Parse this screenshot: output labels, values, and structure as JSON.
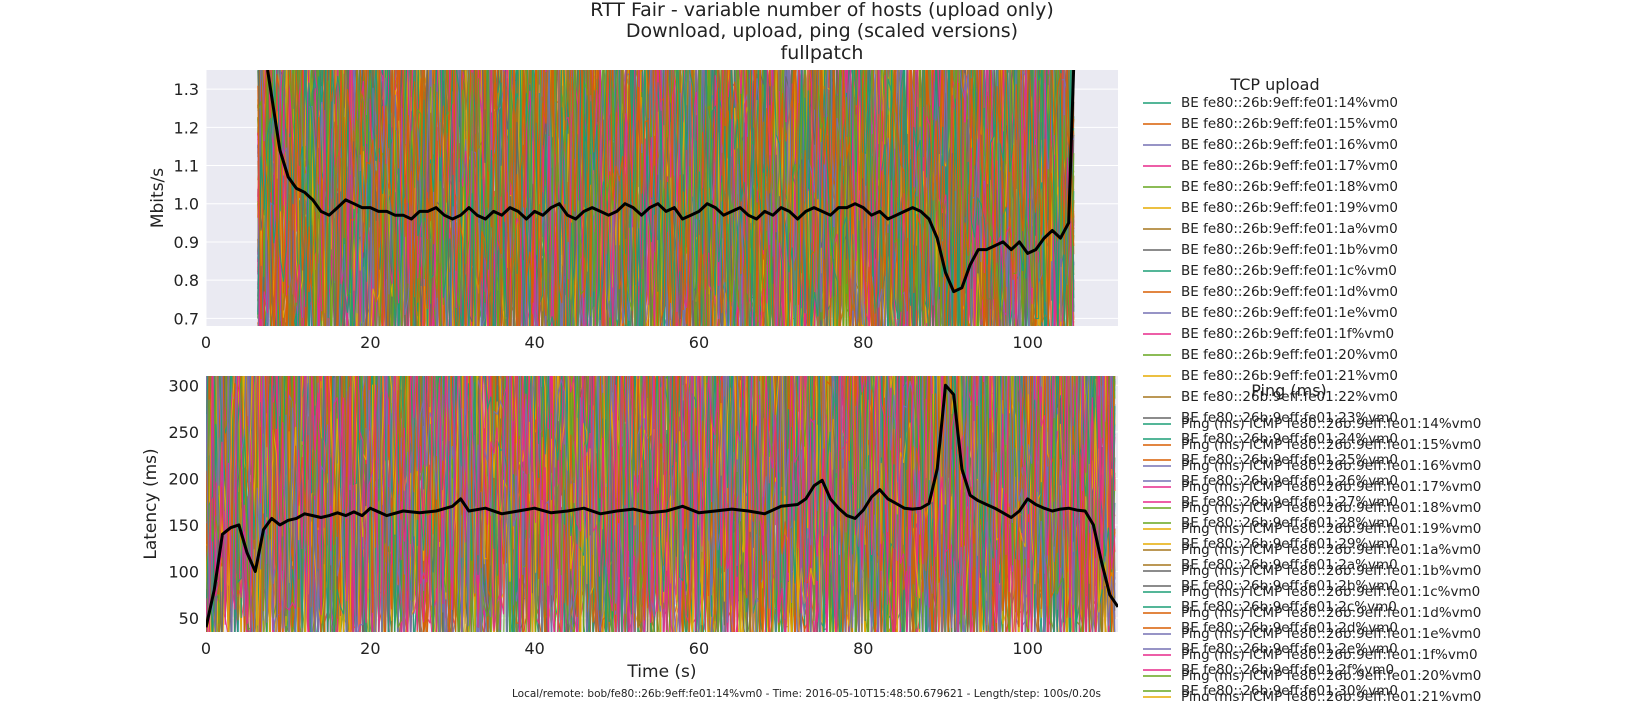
{
  "figure": {
    "title_lines": [
      "RTT Fair - variable number of hosts (upload only)",
      "Download, upload, ping (scaled versions)",
      "fullpatch"
    ],
    "footer": "Local/remote: bob/fe80::26b:9eff:fe01:14%vm0 - Time: 2016-05-10T15:48:50.679621 - Length/step: 100s/0.20s"
  },
  "chart_data": [
    {
      "type": "line",
      "title": "",
      "xlabel": "",
      "ylabel": "Mbits/s",
      "xlim": [
        0,
        111
      ],
      "ylim": [
        0.68,
        1.35
      ],
      "xticks": [
        0,
        20,
        40,
        60,
        80,
        100
      ],
      "yticks": [
        0.7,
        0.8,
        0.9,
        1.0,
        1.1,
        1.2,
        1.3
      ],
      "grid": true,
      "background": "#eaeaf2",
      "legend": {
        "title": "TCP upload",
        "placement": "right",
        "entries": [
          {
            "name": "BE fe80::26b:9eff:fe01:14%vm0",
            "color": "#1b9e77"
          },
          {
            "name": "BE fe80::26b:9eff:fe01:15%vm0",
            "color": "#d95f02"
          },
          {
            "name": "BE fe80::26b:9eff:fe01:16%vm0",
            "color": "#7570b3"
          },
          {
            "name": "BE fe80::26b:9eff:fe01:17%vm0",
            "color": "#e7298a"
          },
          {
            "name": "BE fe80::26b:9eff:fe01:18%vm0",
            "color": "#66a61e"
          },
          {
            "name": "BE fe80::26b:9eff:fe01:19%vm0",
            "color": "#e6ab02"
          },
          {
            "name": "BE fe80::26b:9eff:fe01:1a%vm0",
            "color": "#a6761d"
          },
          {
            "name": "BE fe80::26b:9eff:fe01:1b%vm0",
            "color": "#666666"
          },
          {
            "name": "BE fe80::26b:9eff:fe01:1c%vm0",
            "color": "#1b9e77"
          },
          {
            "name": "BE fe80::26b:9eff:fe01:1d%vm0",
            "color": "#d95f02"
          },
          {
            "name": "BE fe80::26b:9eff:fe01:1e%vm0",
            "color": "#7570b3"
          },
          {
            "name": "BE fe80::26b:9eff:fe01:1f%vm0",
            "color": "#e7298a"
          },
          {
            "name": "BE fe80::26b:9eff:fe01:20%vm0",
            "color": "#66a61e"
          },
          {
            "name": "BE fe80::26b:9eff:fe01:21%vm0",
            "color": "#e6ab02"
          },
          {
            "name": "BE fe80::26b:9eff:fe01:22%vm0",
            "color": "#a6761d"
          },
          {
            "name": "BE fe80::26b:9eff:fe01:23%vm0",
            "color": "#666666"
          },
          {
            "name": "BE fe80::26b:9eff:fe01:24%vm0",
            "color": "#1b9e77"
          },
          {
            "name": "BE fe80::26b:9eff:fe01:25%vm0",
            "color": "#d95f02"
          },
          {
            "name": "BE fe80::26b:9eff:fe01:26%vm0",
            "color": "#7570b3"
          },
          {
            "name": "BE fe80::26b:9eff:fe01:27%vm0",
            "color": "#e7298a"
          },
          {
            "name": "BE fe80::26b:9eff:fe01:28%vm0",
            "color": "#66a61e"
          },
          {
            "name": "BE fe80::26b:9eff:fe01:29%vm0",
            "color": "#e6ab02"
          },
          {
            "name": "BE fe80::26b:9eff:fe01:2a%vm0",
            "color": "#a6761d"
          },
          {
            "name": "BE fe80::26b:9eff:fe01:2b%vm0",
            "color": "#666666"
          },
          {
            "name": "BE fe80::26b:9eff:fe01:2c%vm0",
            "color": "#1b9e77"
          },
          {
            "name": "BE fe80::26b:9eff:fe01:2d%vm0",
            "color": "#d95f02"
          },
          {
            "name": "BE fe80::26b:9eff:fe01:2e%vm0",
            "color": "#7570b3"
          },
          {
            "name": "BE fe80::26b:9eff:fe01:2f%vm0",
            "color": "#e7298a"
          },
          {
            "name": "BE fe80::26b:9eff:fe01:30%vm0",
            "color": "#66a61e"
          }
        ]
      },
      "noise": {
        "x_start": 6.3,
        "x_end": 106,
        "count": 60,
        "seed": 7,
        "min": 0.55,
        "max": 1.5
      },
      "series": [
        {
          "name": "",
          "color": "#000000",
          "x": [
            7.5,
            8,
            9,
            10,
            11,
            12,
            13,
            14,
            15,
            16,
            17,
            18,
            19,
            20,
            21,
            22,
            23,
            24,
            25,
            26,
            27,
            28,
            29,
            30,
            31,
            32,
            33,
            34,
            35,
            36,
            37,
            38,
            39,
            40,
            41,
            42,
            43,
            44,
            45,
            46,
            47,
            48,
            49,
            50,
            51,
            52,
            53,
            54,
            55,
            56,
            57,
            58,
            59,
            60,
            61,
            62,
            63,
            64,
            65,
            66,
            67,
            68,
            69,
            70,
            71,
            72,
            73,
            74,
            75,
            76,
            77,
            78,
            79,
            80,
            81,
            82,
            83,
            84,
            85,
            86,
            87,
            88,
            89,
            90,
            91,
            92,
            93,
            94,
            95,
            96,
            97,
            98,
            99,
            100,
            101,
            102,
            103,
            104,
            105,
            105.6
          ],
          "y": [
            1.35,
            1.28,
            1.14,
            1.07,
            1.04,
            1.03,
            1.01,
            0.98,
            0.97,
            0.99,
            1.01,
            1.0,
            0.99,
            0.99,
            0.98,
            0.98,
            0.97,
            0.97,
            0.96,
            0.98,
            0.98,
            0.99,
            0.97,
            0.96,
            0.97,
            0.99,
            0.97,
            0.96,
            0.98,
            0.97,
            0.99,
            0.98,
            0.96,
            0.98,
            0.97,
            0.99,
            1.0,
            0.97,
            0.96,
            0.98,
            0.99,
            0.98,
            0.97,
            0.98,
            1.0,
            0.99,
            0.97,
            0.99,
            1.0,
            0.98,
            0.99,
            0.96,
            0.97,
            0.98,
            1.0,
            0.99,
            0.97,
            0.98,
            0.99,
            0.97,
            0.96,
            0.98,
            0.97,
            0.99,
            0.98,
            0.96,
            0.98,
            0.99,
            0.98,
            0.97,
            0.99,
            0.99,
            1.0,
            0.99,
            0.97,
            0.98,
            0.96,
            0.97,
            0.98,
            0.99,
            0.98,
            0.96,
            0.91,
            0.82,
            0.77,
            0.78,
            0.84,
            0.88,
            0.88,
            0.89,
            0.9,
            0.88,
            0.9,
            0.87,
            0.88,
            0.91,
            0.93,
            0.91,
            0.95,
            1.35
          ]
        }
      ]
    },
    {
      "type": "line",
      "title": "",
      "xlabel": "Time (s)",
      "ylabel": "Latency (ms)",
      "xlim": [
        0,
        111
      ],
      "ylim": [
        35,
        310
      ],
      "xticks": [
        0,
        20,
        40,
        60,
        80,
        100
      ],
      "yticks": [
        50,
        100,
        150,
        200,
        250,
        300
      ],
      "grid": true,
      "background": "#eaeaf2",
      "legend": {
        "title": "Ping (ms)",
        "placement": "right",
        "entries": [
          {
            "name": "Ping (ms) ICMP fe80::26b:9eff:fe01:14%vm0",
            "color": "#1b9e77"
          },
          {
            "name": "Ping (ms) ICMP fe80::26b:9eff:fe01:15%vm0",
            "color": "#d95f02"
          },
          {
            "name": "Ping (ms) ICMP fe80::26b:9eff:fe01:16%vm0",
            "color": "#7570b3"
          },
          {
            "name": "Ping (ms) ICMP fe80::26b:9eff:fe01:17%vm0",
            "color": "#e7298a"
          },
          {
            "name": "Ping (ms) ICMP fe80::26b:9eff:fe01:18%vm0",
            "color": "#66a61e"
          },
          {
            "name": "Ping (ms) ICMP fe80::26b:9eff:fe01:19%vm0",
            "color": "#e6ab02"
          },
          {
            "name": "Ping (ms) ICMP fe80::26b:9eff:fe01:1a%vm0",
            "color": "#a6761d"
          },
          {
            "name": "Ping (ms) ICMP fe80::26b:9eff:fe01:1b%vm0",
            "color": "#666666"
          },
          {
            "name": "Ping (ms) ICMP fe80::26b:9eff:fe01:1c%vm0",
            "color": "#1b9e77"
          },
          {
            "name": "Ping (ms) ICMP fe80::26b:9eff:fe01:1d%vm0",
            "color": "#d95f02"
          },
          {
            "name": "Ping (ms) ICMP fe80::26b:9eff:fe01:1e%vm0",
            "color": "#7570b3"
          },
          {
            "name": "Ping (ms) ICMP fe80::26b:9eff:fe01:1f%vm0",
            "color": "#e7298a"
          },
          {
            "name": "Ping (ms) ICMP fe80::26b:9eff:fe01:20%vm0",
            "color": "#66a61e"
          },
          {
            "name": "Ping (ms) ICMP fe80::26b:9eff:fe01:21%vm0",
            "color": "#e6ab02"
          }
        ]
      },
      "noise": {
        "x_start": 0,
        "x_end": 111,
        "count": 60,
        "seed": 13,
        "min": 0,
        "max": 420
      },
      "series": [
        {
          "name": "",
          "color": "#000000",
          "x": [
            0,
            1,
            2,
            3,
            4,
            5,
            6,
            7,
            8,
            9,
            10,
            11,
            12,
            13,
            14,
            15,
            16,
            17,
            18,
            19,
            20,
            22,
            24,
            26,
            28,
            30,
            31,
            32,
            34,
            36,
            38,
            40,
            42,
            44,
            46,
            48,
            50,
            52,
            54,
            56,
            58,
            60,
            62,
            64,
            66,
            68,
            70,
            72,
            73,
            74,
            75,
            76,
            77,
            78,
            79,
            80,
            81,
            82,
            83,
            84,
            85,
            86,
            87,
            88,
            89,
            90,
            91,
            92,
            93,
            94,
            95,
            96,
            97,
            98,
            99,
            100,
            101,
            102,
            103,
            104,
            105,
            106,
            107,
            108,
            109,
            110,
            111
          ],
          "y": [
            40,
            80,
            140,
            147,
            150,
            120,
            100,
            145,
            157,
            150,
            155,
            157,
            162,
            160,
            158,
            160,
            163,
            160,
            164,
            160,
            168,
            160,
            165,
            163,
            165,
            170,
            178,
            165,
            168,
            162,
            165,
            168,
            163,
            165,
            168,
            162,
            165,
            167,
            163,
            165,
            170,
            163,
            165,
            167,
            165,
            162,
            170,
            172,
            178,
            192,
            198,
            178,
            168,
            160,
            157,
            166,
            180,
            188,
            178,
            173,
            168,
            167,
            168,
            173,
            210,
            300,
            290,
            210,
            182,
            176,
            172,
            168,
            163,
            158,
            165,
            178,
            172,
            168,
            165,
            167,
            168,
            166,
            165,
            150,
            110,
            75,
            62
          ]
        }
      ]
    }
  ]
}
